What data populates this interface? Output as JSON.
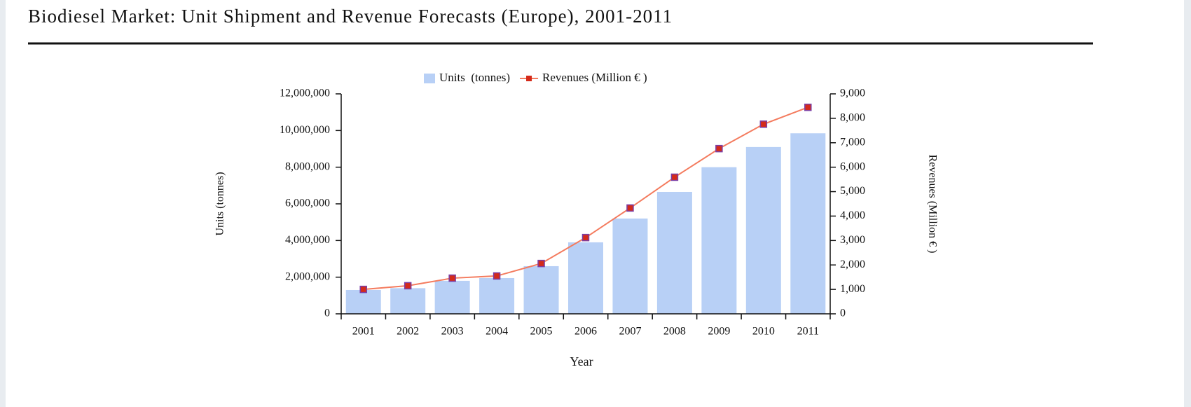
{
  "chart_data": {
    "type": "bar-line",
    "title": "Biodiesel Market: Unit Shipment and Revenue Forecasts (Europe), 2001-2011",
    "categories": [
      "2001",
      "2002",
      "2003",
      "2004",
      "2005",
      "2006",
      "2007",
      "2008",
      "2009",
      "2010",
      "2011"
    ],
    "series": [
      {
        "name": "Units  (tonnes)",
        "type": "bar",
        "color": "#b8d0f6",
        "values": [
          1300000,
          1400000,
          1800000,
          1950000,
          2600000,
          3900000,
          5200000,
          6650000,
          8000000,
          9100000,
          9850000
        ]
      },
      {
        "name": "Revenues (Million € )",
        "type": "line",
        "axis": "y2",
        "color": "#f47b5e",
        "marker_color": "#d42a1a",
        "values": [
          1000,
          1150,
          1460,
          1550,
          2060,
          3120,
          4330,
          5590,
          6760,
          7760,
          8450
        ]
      }
    ],
    "xlabel": "Year",
    "ylabel": "Units (tonnes)",
    "y2label": "Revenues (Million € )",
    "ylim": [
      0,
      12000000
    ],
    "yticks": [
      0,
      {
        "value": 2000000,
        "label": "2,000,000"
      },
      {
        "value": 4000000,
        "label": "4,000,000"
      },
      {
        "value": 6000000,
        "label": "6,000,000"
      },
      {
        "value": 8000000,
        "label": "8,000,000"
      },
      {
        "value": 10000000,
        "label": "10,000,000"
      },
      {
        "value": 12000000,
        "label": "12,000,000"
      }
    ],
    "y2lim": [
      0,
      9000
    ],
    "y2ticks": [
      0,
      {
        "value": 1000,
        "label": "1,000"
      },
      {
        "value": 2000,
        "label": "2,000"
      },
      {
        "value": 3000,
        "label": "3,000"
      },
      {
        "value": 4000,
        "label": "4,000"
      },
      {
        "value": 5000,
        "label": "5,000"
      },
      {
        "value": 6000,
        "label": "6,000"
      },
      {
        "value": 7000,
        "label": "7,000"
      },
      {
        "value": 8000,
        "label": "8,000"
      },
      {
        "value": 9000,
        "label": "9,000"
      }
    ],
    "legend": "top"
  }
}
